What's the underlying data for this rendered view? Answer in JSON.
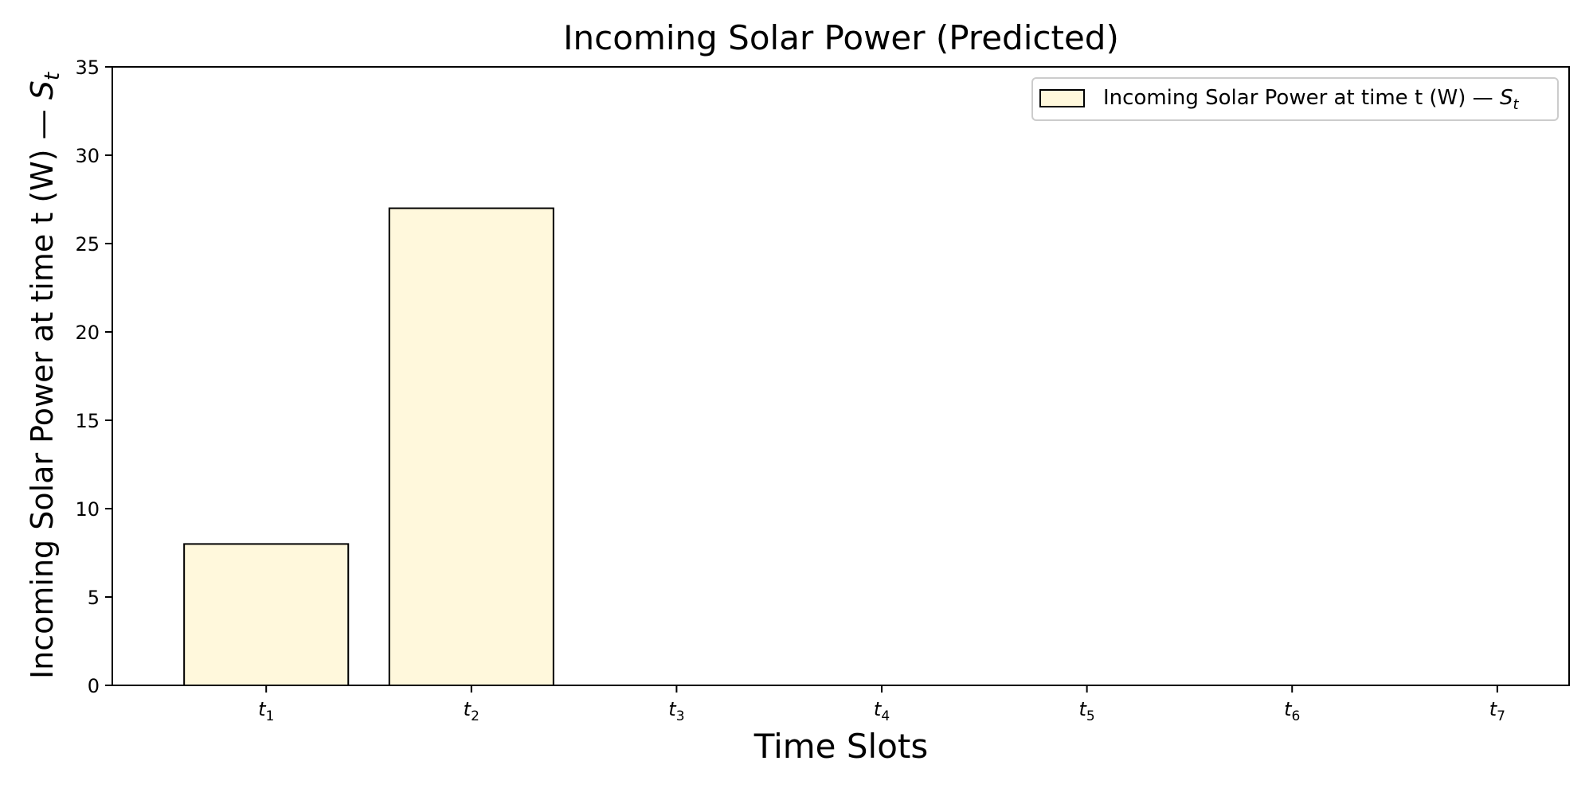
{
  "chart_data": {
    "type": "bar",
    "title": "Incoming Solar Power (Predicted)",
    "xlabel": "Time Slots",
    "ylabel": {
      "main": "Incoming Solar Power at time t (W) — ",
      "sym": "S",
      "sub": "t"
    },
    "categories": [
      {
        "sym": "t",
        "sub": "1"
      },
      {
        "sym": "t",
        "sub": "2"
      },
      {
        "sym": "t",
        "sub": "3"
      },
      {
        "sym": "t",
        "sub": "4"
      },
      {
        "sym": "t",
        "sub": "5"
      },
      {
        "sym": "t",
        "sub": "6"
      },
      {
        "sym": "t",
        "sub": "7"
      }
    ],
    "values": [
      8,
      27,
      0,
      0,
      0,
      0,
      0
    ],
    "ylim": [
      0,
      35
    ],
    "yticks": [
      0,
      5,
      10,
      15,
      20,
      25,
      30,
      35
    ],
    "grid": false,
    "legend": {
      "position": "top-right",
      "entry": {
        "main": "Incoming Solar Power at time t (W) — ",
        "sym": "S",
        "sub": "t"
      }
    },
    "colors": {
      "bar_fill": "#FFF8DC",
      "bar_edge": "#000000"
    }
  }
}
